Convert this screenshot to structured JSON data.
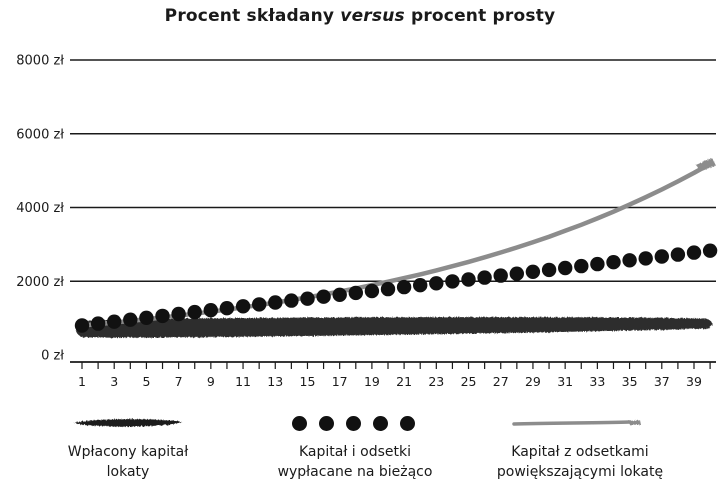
{
  "chart_data": {
    "type": "line",
    "title_parts": [
      "Procent składany ",
      "versus",
      " procent prosty"
    ],
    "y_ticks": [
      "0 zł",
      "2000 zł",
      "4000 zł",
      "6000 zł",
      "8000 zł"
    ],
    "ylim": [
      0,
      8000
    ],
    "x_ticks": [
      "1",
      "3",
      "5",
      "7",
      "9",
      "11",
      "13",
      "15",
      "17",
      "19",
      "21",
      "23",
      "25",
      "27",
      "29",
      "31",
      "33",
      "35",
      "37",
      "39"
    ],
    "xlim": [
      1,
      40
    ],
    "grid": true,
    "legend_position": "bottom",
    "series": [
      {
        "name": "Wpłacony kapitał lokaty",
        "style": "brush-band",
        "color": "#1e1e1e",
        "x": [
          1,
          40
        ],
        "values": [
          780,
          850
        ]
      },
      {
        "name": "Kapitał i odsetki wypłacane na bieżąco",
        "style": "dots",
        "color": "#111111",
        "x": [
          1,
          2,
          3,
          4,
          5,
          6,
          7,
          8,
          9,
          10,
          11,
          12,
          13,
          14,
          15,
          16,
          17,
          18,
          19,
          20,
          21,
          22,
          23,
          24,
          25,
          26,
          27,
          28,
          29,
          30,
          31,
          32,
          33,
          34,
          35,
          36,
          37,
          38,
          39,
          40
        ],
        "values": [
          800,
          852,
          904,
          956,
          1008,
          1060,
          1112,
          1164,
          1216,
          1268,
          1320,
          1372,
          1424,
          1476,
          1528,
          1580,
          1632,
          1684,
          1736,
          1788,
          1840,
          1892,
          1944,
          1996,
          2048,
          2100,
          2152,
          2204,
          2256,
          2308,
          2360,
          2412,
          2464,
          2516,
          2568,
          2620,
          2672,
          2724,
          2776,
          2828
        ]
      },
      {
        "name": "Kapitał z odsetkami powiększającymi lokatę",
        "style": "grey-line",
        "color": "#8c8c8c",
        "x": [
          1,
          2,
          3,
          4,
          5,
          6,
          7,
          8,
          9,
          10,
          11,
          12,
          13,
          14,
          15,
          16,
          17,
          18,
          19,
          20,
          21,
          22,
          23,
          24,
          25,
          26,
          27,
          28,
          29,
          30,
          31,
          32,
          33,
          34,
          35,
          36,
          37,
          38,
          39,
          40
        ],
        "values": [
          800,
          839,
          881,
          924,
          969,
          1017,
          1066,
          1119,
          1174,
          1231,
          1292,
          1355,
          1421,
          1491,
          1564,
          1641,
          1722,
          1806,
          1895,
          1988,
          2085,
          2187,
          2295,
          2407,
          2526,
          2650,
          2780,
          2916,
          3059,
          3209,
          3367,
          3532,
          3705,
          3887,
          4078,
          4278,
          4488,
          4708,
          4939,
          5182
        ]
      }
    ]
  },
  "legend": [
    {
      "line1": "Wpłacony kapitał",
      "line2": "lokaty"
    },
    {
      "line1": "Kapitał i odsetki",
      "line2": "wypłacane na bieżąco"
    },
    {
      "line1": "Kapitał z odsetkami",
      "line2": "powiększającymi lokatę"
    }
  ]
}
